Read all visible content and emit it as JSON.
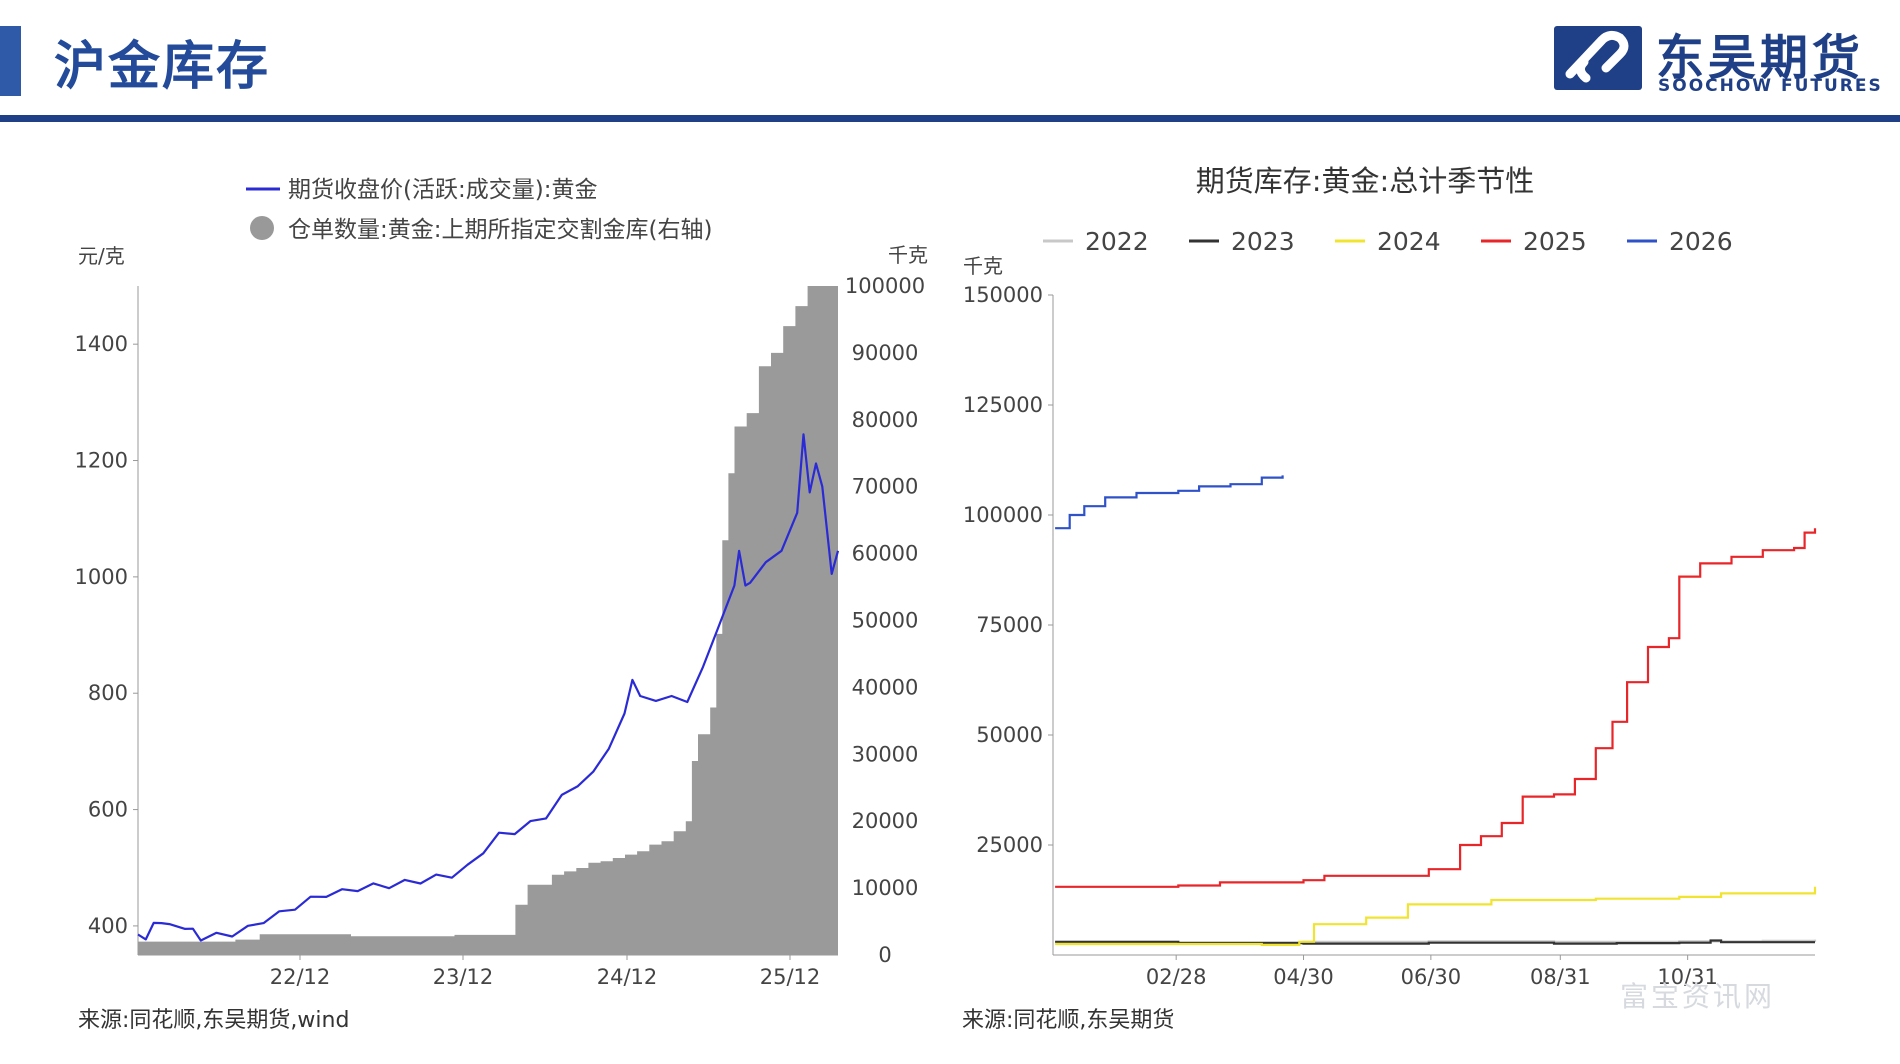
{
  "header": {
    "title": "沪金库存",
    "logo_name": "东吴期货",
    "logo_sub": "SOOCHOW FUTURES",
    "accent_color": "#2f5aa8",
    "brand_color": "#1f3f86"
  },
  "watermark": "富宝资讯网",
  "chart_data": [
    {
      "type": "line+area",
      "legend": [
        {
          "label": "期货收盘价(活跃:成交量):黄金",
          "color": "#2b2bd6",
          "marker": "line"
        },
        {
          "label": "仓单数量:黄金:上期所指定交割金库(右轴)",
          "color": "#999999",
          "marker": "circle"
        }
      ],
      "y_left_unit": "元/克",
      "y_right_unit": "千克",
      "y_left_ticks": [
        "400",
        "600",
        "800",
        "1000",
        "1200",
        "1400"
      ],
      "y_right_ticks": [
        "0",
        "10000",
        "20000",
        "30000",
        "40000",
        "50000",
        "60000",
        "70000",
        "80000",
        "90000",
        "100000"
      ],
      "x_ticks": [
        "22/12",
        "23/12",
        "24/12",
        "25/12"
      ],
      "price_series": [
        [
          0,
          380
        ],
        [
          0.5,
          382
        ],
        [
          1,
          400
        ],
        [
          1.5,
          410
        ],
        [
          2,
          398
        ],
        [
          3,
          400
        ],
        [
          3.5,
          390
        ],
        [
          4,
          380
        ],
        [
          5,
          383
        ],
        [
          6,
          387
        ],
        [
          7,
          395
        ],
        [
          8,
          410
        ],
        [
          9,
          420
        ],
        [
          10,
          433
        ],
        [
          11,
          445
        ],
        [
          12,
          455
        ],
        [
          13,
          458
        ],
        [
          14,
          465
        ],
        [
          15,
          468
        ],
        [
          16,
          470
        ],
        [
          17,
          474
        ],
        [
          18,
          478
        ],
        [
          19,
          483
        ],
        [
          20,
          488
        ],
        [
          21,
          500
        ],
        [
          22,
          530
        ],
        [
          23,
          555
        ],
        [
          24,
          563
        ],
        [
          25,
          575
        ],
        [
          26,
          590
        ],
        [
          27,
          620
        ],
        [
          28,
          645
        ],
        [
          29,
          660
        ],
        [
          30,
          710
        ],
        [
          31,
          760
        ],
        [
          31.5,
          828
        ],
        [
          32,
          790
        ],
        [
          33,
          792
        ],
        [
          34,
          790
        ],
        [
          35,
          790
        ],
        [
          36,
          840
        ],
        [
          37,
          920
        ],
        [
          38,
          980
        ],
        [
          38.3,
          1050
        ],
        [
          38.7,
          980
        ],
        [
          39,
          995
        ],
        [
          40,
          1020
        ],
        [
          41,
          1050
        ],
        [
          42,
          1105
        ],
        [
          42.4,
          1250
        ],
        [
          42.8,
          1140
        ],
        [
          43.2,
          1200
        ],
        [
          43.6,
          1150
        ],
        [
          44,
          1060
        ],
        [
          44.2,
          1000
        ],
        [
          44.6,
          1050
        ]
      ],
      "warrant_series": [
        [
          0,
          2000
        ],
        [
          8,
          2300
        ],
        [
          9,
          2300
        ],
        [
          10,
          3100
        ],
        [
          17,
          3100
        ],
        [
          17.5,
          2800
        ],
        [
          25,
          2800
        ],
        [
          26,
          3000
        ],
        [
          30,
          3000
        ],
        [
          31,
          7500
        ],
        [
          32,
          10500
        ],
        [
          34,
          12000
        ],
        [
          35,
          12500
        ],
        [
          36,
          13000
        ],
        [
          37,
          13800
        ],
        [
          38,
          14000
        ],
        [
          39,
          14500
        ],
        [
          40,
          15000
        ],
        [
          41,
          15500
        ],
        [
          42,
          16500
        ],
        [
          43,
          17000
        ],
        [
          44,
          18500
        ],
        [
          45,
          20000
        ],
        [
          45.5,
          29000
        ],
        [
          46,
          33000
        ],
        [
          47,
          37000
        ],
        [
          47.5,
          48000
        ],
        [
          48,
          62000
        ],
        [
          48.5,
          72000
        ],
        [
          49,
          79000
        ],
        [
          50,
          81000
        ],
        [
          51,
          88000
        ],
        [
          52,
          90000
        ],
        [
          53,
          94000
        ],
        [
          54,
          97000
        ],
        [
          55,
          100000
        ],
        [
          57.5,
          100000
        ]
      ],
      "price_ylim": [
        350,
        1500
      ],
      "warrant_ylim": [
        0,
        100000
      ]
    },
    {
      "type": "line",
      "title": "期货库存:黄金:总计季节性",
      "y_unit": "千克",
      "y_ticks": [
        "0",
        "25000",
        "50000",
        "75000",
        "100000",
        "125000",
        "150000"
      ],
      "x_ticks": [
        "02/28",
        "04/30",
        "06/30",
        "08/31",
        "10/31"
      ],
      "ylim": [
        0,
        150000
      ],
      "series": [
        {
          "name": "2022",
          "color": "#c8c8c8",
          "values": [
            [
              1,
              3000
            ],
            [
              60,
              2900
            ],
            [
              120,
              3000
            ],
            [
              180,
              3100
            ],
            [
              240,
              3000
            ],
            [
              300,
              3100
            ],
            [
              340,
              3200
            ],
            [
              365,
              3500
            ]
          ]
        },
        {
          "name": "2023",
          "color": "#333333",
          "values": [
            [
              1,
              3000
            ],
            [
              60,
              2700
            ],
            [
              120,
              2600
            ],
            [
              180,
              2800
            ],
            [
              240,
              2600
            ],
            [
              270,
              2700
            ],
            [
              300,
              2800
            ],
            [
              315,
              3300
            ],
            [
              320,
              2900
            ],
            [
              365,
              2900
            ]
          ]
        },
        {
          "name": "2024",
          "color": "#f0e430",
          "values": [
            [
              1,
              2500
            ],
            [
              100,
              2300
            ],
            [
              118,
              3000
            ],
            [
              125,
              7000
            ],
            [
              150,
              8500
            ],
            [
              170,
              11500
            ],
            [
              210,
              12500
            ],
            [
              260,
              12800
            ],
            [
              300,
              13200
            ],
            [
              320,
              14000
            ],
            [
              365,
              15500
            ]
          ]
        },
        {
          "name": "2025",
          "color": "#e8262a",
          "values": [
            [
              1,
              15500
            ],
            [
              60,
              15800
            ],
            [
              80,
              16500
            ],
            [
              120,
              17000
            ],
            [
              130,
              18000
            ],
            [
              160,
              18000
            ],
            [
              180,
              19500
            ],
            [
              195,
              25000
            ],
            [
              205,
              27000
            ],
            [
              215,
              30000
            ],
            [
              225,
              36000
            ],
            [
              240,
              36500
            ],
            [
              250,
              40000
            ],
            [
              260,
              47000
            ],
            [
              268,
              53000
            ],
            [
              275,
              62000
            ],
            [
              285,
              70000
            ],
            [
              295,
              72000
            ],
            [
              300,
              86000
            ],
            [
              310,
              89000
            ],
            [
              325,
              90500
            ],
            [
              340,
              92000
            ],
            [
              355,
              92500
            ],
            [
              360,
              96000
            ],
            [
              365,
              97000
            ]
          ]
        },
        {
          "name": "2026",
          "color": "#2f52c9",
          "values": [
            [
              1,
              97000
            ],
            [
              8,
              100000
            ],
            [
              15,
              102000
            ],
            [
              25,
              104000
            ],
            [
              40,
              105000
            ],
            [
              60,
              105500
            ],
            [
              70,
              106500
            ],
            [
              85,
              107000
            ],
            [
              100,
              108500
            ],
            [
              110,
              109000
            ]
          ]
        }
      ]
    }
  ],
  "sources": {
    "left": "来源:同花顺,东吴期货,wind",
    "right": "来源:同花顺,东吴期货"
  }
}
